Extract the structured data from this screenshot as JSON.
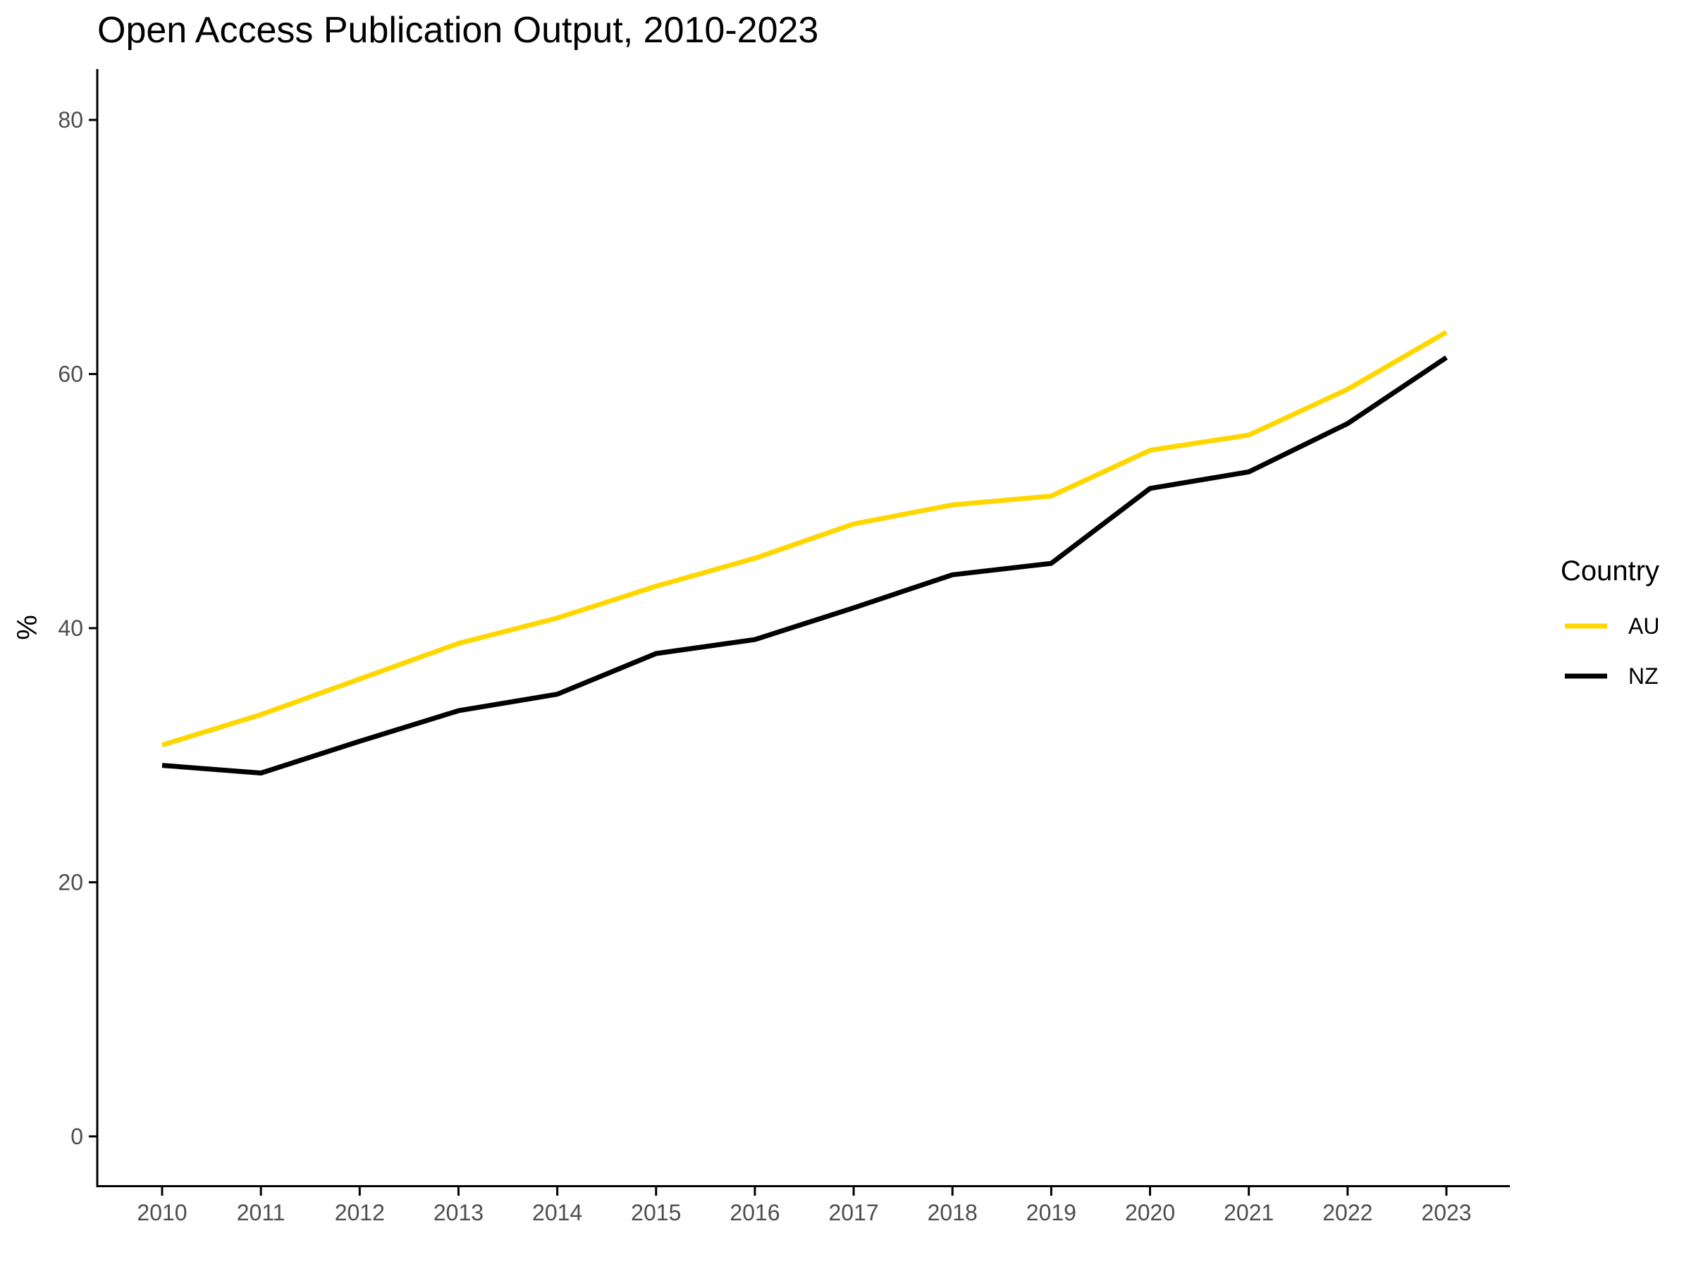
{
  "chart_data": {
    "type": "line",
    "title": "Open Access Publication Output, 2010-2023",
    "xlabel": "",
    "ylabel": "%",
    "x": [
      2010,
      2011,
      2012,
      2013,
      2014,
      2015,
      2016,
      2017,
      2018,
      2019,
      2020,
      2021,
      2022,
      2023
    ],
    "x_tick_labels": [
      "2010",
      "2011",
      "2012",
      "2013",
      "2014",
      "2015",
      "2016",
      "2017",
      "2018",
      "2019",
      "2020",
      "2021",
      "2022",
      "2023"
    ],
    "y_ticks": [
      0,
      20,
      40,
      60,
      80
    ],
    "y_tick_labels": [
      "0",
      "20",
      "40",
      "60",
      "80"
    ],
    "ylim": [
      -4,
      84
    ],
    "grid": false,
    "legend": {
      "title": "Country",
      "position": "right"
    },
    "series": [
      {
        "name": "AU",
        "color": "#FFD700",
        "values": [
          30.8,
          33.2,
          36.0,
          38.8,
          40.8,
          43.3,
          45.5,
          48.2,
          49.7,
          50.4,
          54.0,
          55.2,
          58.8,
          63.3
        ]
      },
      {
        "name": "NZ",
        "color": "#000000",
        "values": [
          29.2,
          28.6,
          31.1,
          33.5,
          34.8,
          38.0,
          39.1,
          41.6,
          44.2,
          45.1,
          51.0,
          52.3,
          56.1,
          61.3
        ]
      }
    ]
  }
}
